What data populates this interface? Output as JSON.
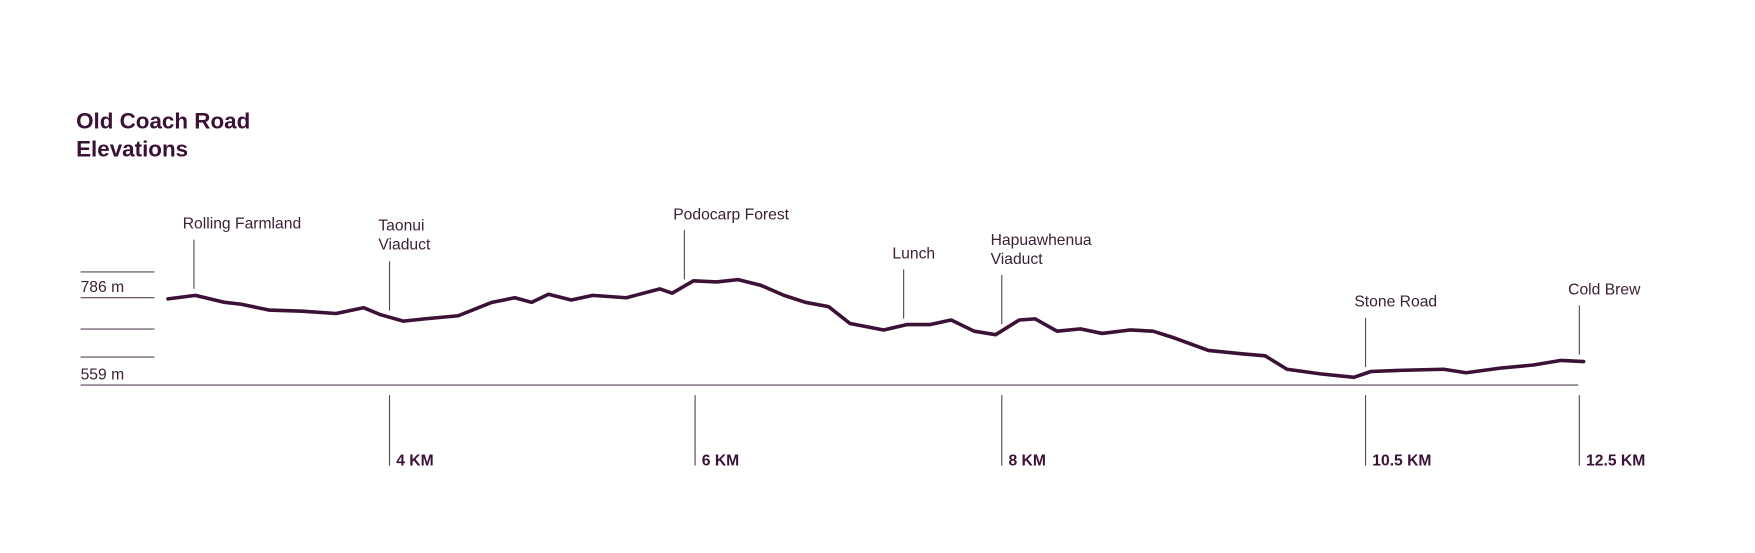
{
  "chart_data": {
    "type": "line",
    "title": "Old Coach Road\nElevations",
    "color": "#3b1236",
    "x": [
      2.55,
      2.73,
      2.92,
      3.03,
      3.21,
      3.43,
      3.65,
      3.83,
      3.94,
      4.09,
      4.23,
      4.45,
      4.67,
      4.82,
      4.93,
      5.04,
      5.19,
      5.33,
      5.55,
      5.77,
      5.85,
      5.99,
      6.14,
      6.28,
      6.43,
      6.58,
      6.72,
      6.87,
      7.01,
      7.23,
      7.38,
      7.53,
      7.67,
      7.82,
      7.96,
      8.12,
      8.23,
      8.38,
      8.54,
      8.69,
      8.88,
      9.04,
      9.19,
      9.42,
      9.65,
      9.81,
      9.96,
      10.19,
      10.42,
      10.55,
      10.81,
      11.23,
      11.44,
      11.76,
      12.07,
      12.33,
      12.54
    ],
    "values": [
      783,
      792,
      774,
      769,
      754,
      751,
      745,
      760,
      742,
      725,
      731,
      739,
      774,
      786,
      774,
      795,
      780,
      792,
      786,
      809,
      798,
      830,
      827,
      833,
      818,
      792,
      774,
      763,
      719,
      702,
      716,
      716,
      728,
      699,
      690,
      728,
      731,
      699,
      705,
      693,
      702,
      699,
      681,
      649,
      640,
      635,
      600,
      588,
      579,
      594,
      597,
      600,
      591,
      603,
      611,
      623,
      620
    ],
    "xlim": [
      2.55,
      12.54
    ],
    "xticks": [
      {
        "value": 4,
        "label": "4 KM"
      },
      {
        "value": 6,
        "label": "6 KM"
      },
      {
        "value": 8,
        "label": "8 KM"
      },
      {
        "value": 10.5,
        "label": "10.5 KM"
      },
      {
        "value": 12.5,
        "label": "12.5 KM"
      }
    ],
    "ylim": [
      540,
      850
    ],
    "yticks": [
      {
        "value": 786,
        "label": "786 m"
      },
      {
        "value": 559,
        "label": "559 m"
      }
    ],
    "annotations": [
      {
        "text": "Rolling Farmland",
        "x": 2.72
      },
      {
        "text": "Taonui\nViaduct",
        "x": 4.0
      },
      {
        "text": "Podocarp Forest",
        "x": 5.93
      },
      {
        "text": "Lunch",
        "x": 7.36
      },
      {
        "text": "Hapuawhenua\nViaduct",
        "x": 8.0
      },
      {
        "text": "Stone Road",
        "x": 10.5
      },
      {
        "text": "Cold Brew",
        "x": 12.5
      }
    ]
  }
}
